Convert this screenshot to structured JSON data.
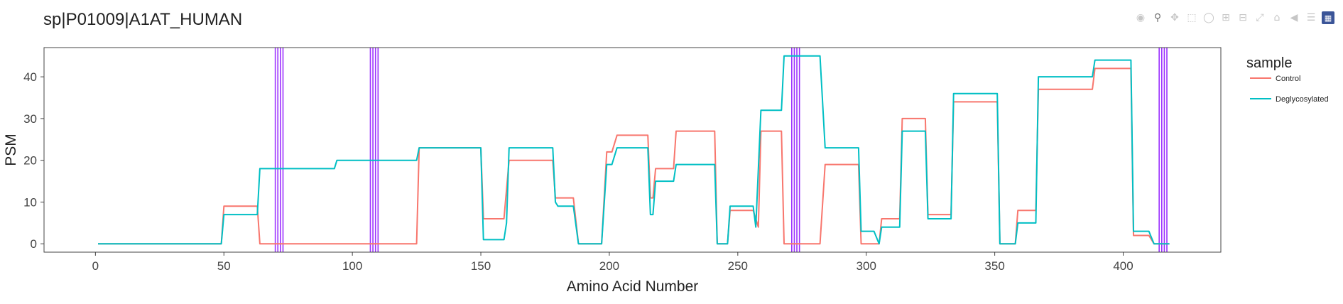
{
  "title": "sp|P01009|A1AT_HUMAN",
  "modebar": {
    "icons": [
      "camera-icon",
      "zoom-icon",
      "pan-icon",
      "box-select-icon",
      "lasso-icon",
      "zoom-in-icon",
      "zoom-out-icon",
      "autoscale-icon",
      "reset-axes-icon",
      "spike-lines-icon",
      "compare-hover-icon",
      "plotly-logo-icon"
    ]
  },
  "chart_data": {
    "type": "line",
    "title": "sp|P01009|A1AT_HUMAN",
    "xlabel": "Amino Acid Number",
    "ylabel": "PSM",
    "xlim": [
      -20,
      438
    ],
    "ylim": [
      -2,
      47
    ],
    "xticks": [
      0,
      50,
      100,
      150,
      200,
      250,
      300,
      350,
      400
    ],
    "yticks": [
      0,
      10,
      20,
      30,
      40
    ],
    "grid": false,
    "legend_title": "sample",
    "legend_position": "right",
    "vlines": [
      {
        "color": "#9B30FF",
        "x": [
          70,
          71,
          72,
          73
        ]
      },
      {
        "color": "#9B30FF",
        "x": [
          107,
          108,
          109,
          110
        ]
      },
      {
        "color": "#9B30FF",
        "x": [
          271,
          272,
          273,
          274
        ]
      },
      {
        "color": "#9B30FF",
        "x": [
          414,
          415,
          416,
          417
        ]
      }
    ],
    "series": [
      {
        "name": "Control",
        "color": "#F8766D",
        "points": [
          [
            1,
            0
          ],
          [
            49,
            0
          ],
          [
            50,
            9
          ],
          [
            63,
            9
          ],
          [
            64,
            0
          ],
          [
            125,
            0
          ],
          [
            126,
            23
          ],
          [
            150,
            23
          ],
          [
            151,
            6
          ],
          [
            159,
            6
          ],
          [
            161,
            20
          ],
          [
            178,
            20
          ],
          [
            179,
            11
          ],
          [
            186,
            11
          ],
          [
            188,
            0
          ],
          [
            197,
            0
          ],
          [
            199,
            22
          ],
          [
            201,
            22
          ],
          [
            203,
            26
          ],
          [
            215,
            26
          ],
          [
            216,
            11
          ],
          [
            217,
            11
          ],
          [
            218,
            18
          ],
          [
            225,
            18
          ],
          [
            226,
            27
          ],
          [
            241,
            27
          ],
          [
            242,
            0
          ],
          [
            246,
            0
          ],
          [
            247,
            8
          ],
          [
            256,
            8
          ],
          [
            258,
            4
          ],
          [
            259,
            27
          ],
          [
            267,
            27
          ],
          [
            268,
            0
          ],
          [
            282,
            0
          ],
          [
            284,
            19
          ],
          [
            297,
            19
          ],
          [
            298,
            0
          ],
          [
            305,
            0
          ],
          [
            306,
            6
          ],
          [
            313,
            6
          ],
          [
            314,
            30
          ],
          [
            323,
            30
          ],
          [
            324,
            7
          ],
          [
            333,
            7
          ],
          [
            334,
            34
          ],
          [
            351,
            34
          ],
          [
            352,
            0
          ],
          [
            358,
            0
          ],
          [
            359,
            8
          ],
          [
            366,
            8
          ],
          [
            367,
            37
          ],
          [
            388,
            37
          ],
          [
            389,
            42
          ],
          [
            403,
            42
          ],
          [
            404,
            2
          ],
          [
            410,
            2
          ],
          [
            412,
            0
          ],
          [
            418,
            0
          ]
        ]
      },
      {
        "name": "Deglycosylated",
        "color": "#00BFC4",
        "points": [
          [
            1,
            0
          ],
          [
            49,
            0
          ],
          [
            50,
            7
          ],
          [
            63,
            7
          ],
          [
            64,
            18
          ],
          [
            93,
            18
          ],
          [
            94,
            20
          ],
          [
            125,
            20
          ],
          [
            126,
            23
          ],
          [
            150,
            23
          ],
          [
            151,
            1
          ],
          [
            159,
            1
          ],
          [
            160,
            5
          ],
          [
            161,
            23
          ],
          [
            178,
            23
          ],
          [
            179,
            10
          ],
          [
            180,
            9
          ],
          [
            186,
            9
          ],
          [
            188,
            0
          ],
          [
            197,
            0
          ],
          [
            199,
            19
          ],
          [
            201,
            19
          ],
          [
            203,
            23
          ],
          [
            215,
            23
          ],
          [
            216,
            7
          ],
          [
            217,
            7
          ],
          [
            218,
            15
          ],
          [
            225,
            15
          ],
          [
            226,
            19
          ],
          [
            241,
            19
          ],
          [
            242,
            0
          ],
          [
            246,
            0
          ],
          [
            247,
            9
          ],
          [
            256,
            9
          ],
          [
            257,
            4
          ],
          [
            259,
            32
          ],
          [
            267,
            32
          ],
          [
            268,
            45
          ],
          [
            282,
            45
          ],
          [
            284,
            23
          ],
          [
            297,
            23
          ],
          [
            298,
            3
          ],
          [
            303,
            3
          ],
          [
            305,
            0
          ],
          [
            306,
            4
          ],
          [
            313,
            4
          ],
          [
            314,
            27
          ],
          [
            323,
            27
          ],
          [
            324,
            6
          ],
          [
            333,
            6
          ],
          [
            334,
            36
          ],
          [
            351,
            36
          ],
          [
            352,
            0
          ],
          [
            358,
            0
          ],
          [
            359,
            5
          ],
          [
            366,
            5
          ],
          [
            367,
            40
          ],
          [
            388,
            40
          ],
          [
            389,
            44
          ],
          [
            403,
            44
          ],
          [
            404,
            3
          ],
          [
            410,
            3
          ],
          [
            412,
            0
          ],
          [
            418,
            0
          ]
        ]
      }
    ]
  }
}
